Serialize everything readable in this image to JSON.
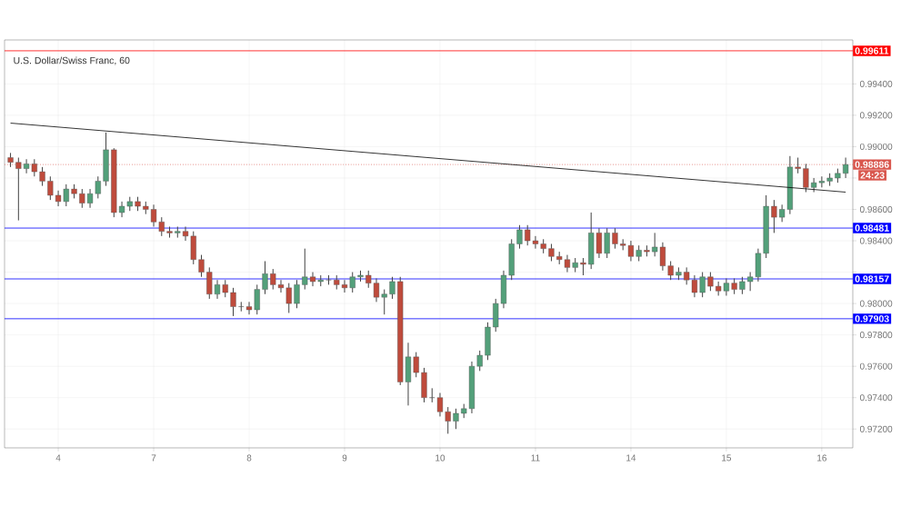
{
  "chart_data": {
    "type": "candlestick",
    "title": "U.S. Dollar/Swiss Franc, 60",
    "categories": [
      null,
      null,
      null,
      null,
      null,
      null,
      "4",
      null,
      null,
      null,
      null,
      null,
      null,
      null,
      null,
      null,
      null,
      null,
      "7",
      null,
      null,
      null,
      null,
      null,
      null,
      null,
      null,
      null,
      null,
      null,
      "8",
      null,
      null,
      null,
      null,
      null,
      null,
      null,
      null,
      null,
      null,
      null,
      "9",
      null,
      null,
      null,
      null,
      null,
      null,
      null,
      null,
      null,
      null,
      null,
      "10",
      null,
      null,
      null,
      null,
      null,
      null,
      null,
      null,
      null,
      null,
      null,
      "11",
      null,
      null,
      null,
      null,
      null,
      null,
      null,
      null,
      null,
      null,
      null,
      "14",
      null,
      null,
      null,
      null,
      null,
      null,
      null,
      null,
      null,
      null,
      null,
      "15",
      null,
      null,
      null,
      null,
      null,
      null,
      null,
      null,
      null,
      null,
      null,
      "16",
      null,
      null,
      null
    ],
    "ohlc": [
      [
        0.9893,
        0.9896,
        0.9887,
        0.989
      ],
      [
        0.989,
        0.9893,
        0.9853,
        0.9886
      ],
      [
        0.9886,
        0.9892,
        0.9883,
        0.9889
      ],
      [
        0.9889,
        0.9892,
        0.9881,
        0.9884
      ],
      [
        0.9884,
        0.9887,
        0.9875,
        0.9878
      ],
      [
        0.9878,
        0.9881,
        0.9866,
        0.9869
      ],
      [
        0.9869,
        0.9872,
        0.9862,
        0.9865
      ],
      [
        0.9865,
        0.9876,
        0.9862,
        0.9873
      ],
      [
        0.9873,
        0.9876,
        0.9867,
        0.987
      ],
      [
        0.987,
        0.9873,
        0.9861,
        0.9864
      ],
      [
        0.9864,
        0.9873,
        0.9861,
        0.987
      ],
      [
        0.987,
        0.9881,
        0.9867,
        0.9878
      ],
      [
        0.9878,
        0.9909,
        0.9875,
        0.9898
      ],
      [
        0.9898,
        0.9899,
        0.9855,
        0.9858
      ],
      [
        0.9858,
        0.9865,
        0.9855,
        0.9862
      ],
      [
        0.9862,
        0.9868,
        0.9859,
        0.9865
      ],
      [
        0.9865,
        0.9868,
        0.9859,
        0.9862
      ],
      [
        0.9862,
        0.9865,
        0.9857,
        0.986
      ],
      [
        0.986,
        0.9863,
        0.9849,
        0.9852
      ],
      [
        0.9852,
        0.9855,
        0.9843,
        0.9846
      ],
      [
        0.9846,
        0.9849,
        0.9842,
        0.9845
      ],
      [
        0.9845,
        0.9849,
        0.9842,
        0.9846
      ],
      [
        0.9846,
        0.9849,
        0.984,
        0.9843
      ],
      [
        0.9843,
        0.9846,
        0.9825,
        0.9828
      ],
      [
        0.9828,
        0.9831,
        0.9817,
        0.982
      ],
      [
        0.982,
        0.9823,
        0.9803,
        0.9806
      ],
      [
        0.9806,
        0.9815,
        0.9803,
        0.9812
      ],
      [
        0.9812,
        0.9815,
        0.9804,
        0.9807
      ],
      [
        0.9807,
        0.981,
        0.9792,
        0.9798
      ],
      [
        0.9798,
        0.9801,
        0.9795,
        0.9798
      ],
      [
        0.9798,
        0.9801,
        0.9793,
        0.9796
      ],
      [
        0.9796,
        0.9812,
        0.9793,
        0.9809
      ],
      [
        0.9809,
        0.9827,
        0.9806,
        0.9819
      ],
      [
        0.9819,
        0.9822,
        0.9809,
        0.9812
      ],
      [
        0.9812,
        0.9815,
        0.9807,
        0.981
      ],
      [
        0.981,
        0.9813,
        0.9794,
        0.98
      ],
      [
        0.98,
        0.9815,
        0.9797,
        0.9812
      ],
      [
        0.9812,
        0.9835,
        0.9809,
        0.9817
      ],
      [
        0.9817,
        0.982,
        0.9811,
        0.9814
      ],
      [
        0.9814,
        0.9818,
        0.9811,
        0.9815
      ],
      [
        0.9815,
        0.9818,
        0.9812,
        0.9815
      ],
      [
        0.9815,
        0.9818,
        0.9809,
        0.9812
      ],
      [
        0.9812,
        0.9815,
        0.9807,
        0.981
      ],
      [
        0.981,
        0.982,
        0.9807,
        0.9817
      ],
      [
        0.9817,
        0.9821,
        0.9814,
        0.9818
      ],
      [
        0.9818,
        0.9821,
        0.981,
        0.9813
      ],
      [
        0.9813,
        0.9816,
        0.9801,
        0.9804
      ],
      [
        0.9804,
        0.9809,
        0.9793,
        0.9806
      ],
      [
        0.9806,
        0.9817,
        0.9803,
        0.9814
      ],
      [
        0.9814,
        0.9817,
        0.9748,
        0.975
      ],
      [
        0.975,
        0.9775,
        0.9735,
        0.9766
      ],
      [
        0.9766,
        0.9769,
        0.9753,
        0.9756
      ],
      [
        0.9756,
        0.9759,
        0.9737,
        0.974
      ],
      [
        0.974,
        0.9746,
        0.9737,
        0.974
      ],
      [
        0.974,
        0.9743,
        0.9728,
        0.9731
      ],
      [
        0.9731,
        0.9734,
        0.9717,
        0.9725
      ],
      [
        0.9725,
        0.9733,
        0.972,
        0.973
      ],
      [
        0.973,
        0.9736,
        0.9727,
        0.9733
      ],
      [
        0.9733,
        0.9763,
        0.973,
        0.976
      ],
      [
        0.976,
        0.977,
        0.9757,
        0.9767
      ],
      [
        0.9767,
        0.9788,
        0.9764,
        0.9785
      ],
      [
        0.9785,
        0.9803,
        0.9782,
        0.98
      ],
      [
        0.98,
        0.9821,
        0.9797,
        0.9818
      ],
      [
        0.9818,
        0.9841,
        0.9815,
        0.9838
      ],
      [
        0.9838,
        0.985,
        0.9835,
        0.9847
      ],
      [
        0.9847,
        0.985,
        0.9837,
        0.984
      ],
      [
        0.984,
        0.9843,
        0.9835,
        0.9838
      ],
      [
        0.9838,
        0.9841,
        0.9832,
        0.9835
      ],
      [
        0.9835,
        0.9838,
        0.9827,
        0.983
      ],
      [
        0.983,
        0.9833,
        0.9825,
        0.9828
      ],
      [
        0.9828,
        0.9831,
        0.982,
        0.9823
      ],
      [
        0.9823,
        0.9829,
        0.982,
        0.9826
      ],
      [
        0.9826,
        0.9829,
        0.9818,
        0.9825
      ],
      [
        0.9825,
        0.9858,
        0.9822,
        0.9845
      ],
      [
        0.9845,
        0.9848,
        0.9829,
        0.9832
      ],
      [
        0.9832,
        0.9848,
        0.9829,
        0.9845
      ],
      [
        0.9845,
        0.9848,
        0.9835,
        0.9838
      ],
      [
        0.9838,
        0.9841,
        0.9834,
        0.9837
      ],
      [
        0.9837,
        0.984,
        0.9827,
        0.983
      ],
      [
        0.983,
        0.9837,
        0.9827,
        0.9834
      ],
      [
        0.9834,
        0.9837,
        0.983,
        0.9833
      ],
      [
        0.9833,
        0.9845,
        0.983,
        0.9836
      ],
      [
        0.9836,
        0.9839,
        0.9821,
        0.9824
      ],
      [
        0.9824,
        0.9827,
        0.9815,
        0.9818
      ],
      [
        0.9818,
        0.9823,
        0.9815,
        0.982
      ],
      [
        0.982,
        0.9823,
        0.9812,
        0.9815
      ],
      [
        0.9815,
        0.9818,
        0.9804,
        0.9807
      ],
      [
        0.9807,
        0.982,
        0.9804,
        0.9817
      ],
      [
        0.9817,
        0.982,
        0.9808,
        0.9811
      ],
      [
        0.9811,
        0.9814,
        0.9805,
        0.9808
      ],
      [
        0.9808,
        0.9816,
        0.9805,
        0.9813
      ],
      [
        0.9813,
        0.9816,
        0.9806,
        0.9809
      ],
      [
        0.9809,
        0.9817,
        0.9806,
        0.9814
      ],
      [
        0.9814,
        0.982,
        0.9808,
        0.9817
      ],
      [
        0.9817,
        0.9835,
        0.9814,
        0.9832
      ],
      [
        0.9832,
        0.9869,
        0.9829,
        0.9862
      ],
      [
        0.9862,
        0.9866,
        0.9845,
        0.9855
      ],
      [
        0.9855,
        0.9863,
        0.9852,
        0.986
      ],
      [
        0.986,
        0.9894,
        0.9857,
        0.9887
      ],
      [
        0.9887,
        0.9893,
        0.9883,
        0.9886
      ],
      [
        0.9886,
        0.9889,
        0.9871,
        0.9874
      ],
      [
        0.9874,
        0.988,
        0.9871,
        0.9877
      ],
      [
        0.9877,
        0.9881,
        0.9874,
        0.9878
      ],
      [
        0.9878,
        0.9883,
        0.9875,
        0.988
      ],
      [
        0.988,
        0.9886,
        0.9877,
        0.9883
      ],
      [
        0.9883,
        0.9893,
        0.988,
        0.98886
      ]
    ],
    "series": [
      {
        "type": "line",
        "values": [
          0.9915,
          null,
          null,
          null,
          null,
          null,
          null,
          null,
          null,
          null,
          null,
          null,
          null,
          null,
          null,
          null,
          null,
          null,
          null,
          null,
          null,
          null,
          null,
          null,
          null,
          null,
          null,
          null,
          null,
          null,
          null,
          null,
          null,
          null,
          null,
          null,
          null,
          null,
          null,
          null,
          null,
          null,
          null,
          null,
          null,
          null,
          null,
          null,
          null,
          null,
          null,
          null,
          null,
          null,
          null,
          null,
          null,
          null,
          null,
          null,
          null,
          null,
          null,
          null,
          null,
          null,
          null,
          null,
          null,
          null,
          null,
          null,
          null,
          null,
          null,
          null,
          null,
          null,
          null,
          null,
          null,
          null,
          null,
          null,
          null,
          null,
          null,
          null,
          null,
          null,
          null,
          null,
          null,
          null,
          null,
          null,
          null,
          null,
          null,
          null,
          null,
          null,
          null,
          null,
          null,
          0.9871
        ],
        "color": "#000000"
      }
    ],
    "ylim": [
      0.9708,
      0.9968
    ],
    "yticks": [
      {
        "value": 0.972,
        "label": "0.97200"
      },
      {
        "value": 0.974,
        "label": "0.97400"
      },
      {
        "value": 0.976,
        "label": "0.97600"
      },
      {
        "value": 0.978,
        "label": "0.97800"
      },
      {
        "value": 0.98,
        "label": "0.98000"
      },
      {
        "value": 0.982,
        "label": null
      },
      {
        "value": 0.984,
        "label": "0.98400"
      },
      {
        "value": 0.986,
        "label": "0.98600"
      },
      {
        "value": 0.988,
        "label": null
      },
      {
        "value": 0.99,
        "label": "0.99000"
      },
      {
        "value": 0.992,
        "label": "0.99200"
      },
      {
        "value": 0.994,
        "label": "0.99400"
      }
    ],
    "ref_lines": [
      {
        "axis": "y",
        "value": 0.99611,
        "label": "0.99611",
        "color": "#ff0000"
      },
      {
        "axis": "y",
        "value": 0.98886,
        "label": "0.98886",
        "color": "#d9574e",
        "line_style": "dotted"
      },
      {
        "axis": "y",
        "value": 0.98481,
        "label": "0.98481",
        "color": "#0000ff"
      },
      {
        "axis": "y",
        "value": 0.98157,
        "label": "0.98157",
        "color": "#0000ff"
      },
      {
        "axis": "y",
        "value": 0.97903,
        "label": "0.97903",
        "color": "#0000ff"
      }
    ],
    "annotations": [
      "24:23"
    ],
    "grid": true
  }
}
